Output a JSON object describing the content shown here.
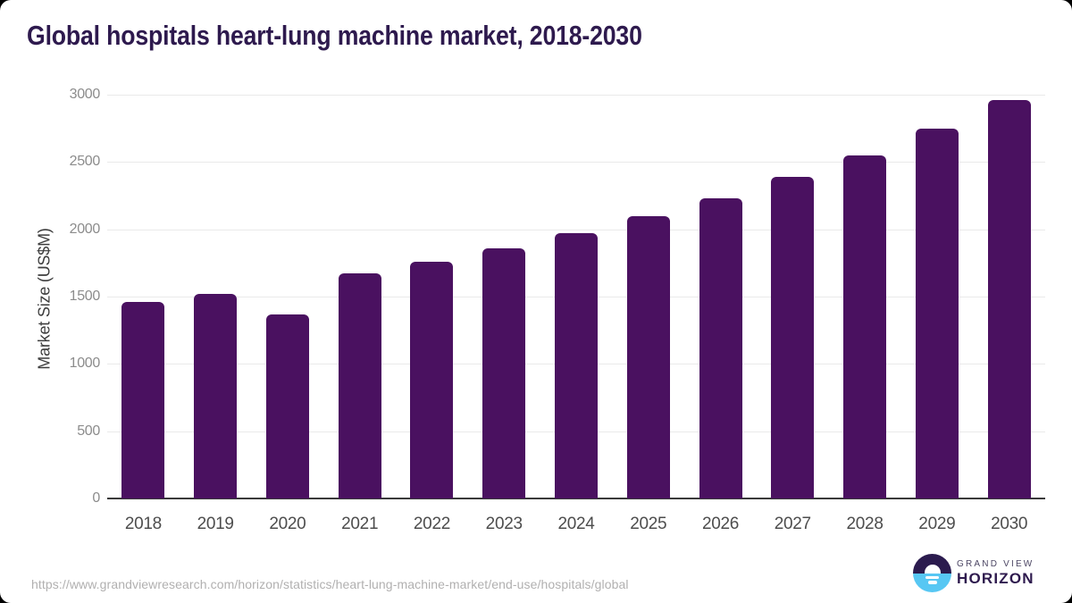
{
  "page": {
    "title": "Global hospitals heart-lung machine market, 2018-2030"
  },
  "footer": {
    "source_url": "https://www.grandviewresearch.com/horizon/statistics/heart-lung-machine-market/end-use/hospitals/global",
    "brand": {
      "line1": "GRAND VIEW",
      "line2": "HORIZON"
    }
  },
  "colors": {
    "title": "#2e1a4e",
    "bar": "#4a1160",
    "gridline": "#eaeaea",
    "axis_line": "#3a3a3a",
    "y_tick": "#8c8c8c",
    "x_tick": "#4d4d4d",
    "y_label": "#3d3d3d",
    "url_text": "#b1b0b0",
    "logo_navy": "#2b1b4e",
    "logo_blue": "#57c7f3"
  },
  "icons": {
    "logo": "horizon-sun-circle-icon"
  },
  "chart_data": {
    "type": "bar",
    "title": "Global hospitals heart-lung machine market, 2018-2030",
    "categories": [
      "2018",
      "2019",
      "2020",
      "2021",
      "2022",
      "2023",
      "2024",
      "2025",
      "2026",
      "2027",
      "2028",
      "2029",
      "2030"
    ],
    "values": [
      1460,
      1520,
      1370,
      1670,
      1760,
      1860,
      1970,
      2100,
      2230,
      2390,
      2550,
      2750,
      2960
    ],
    "xlabel": "",
    "ylabel": "Market Size (US$M)",
    "ylim": [
      0,
      3000
    ],
    "yticks": [
      0,
      500,
      1000,
      1500,
      2000,
      2500,
      3000
    ],
    "grid": true,
    "legend_position": "none",
    "bar_color": "#4a1160"
  }
}
